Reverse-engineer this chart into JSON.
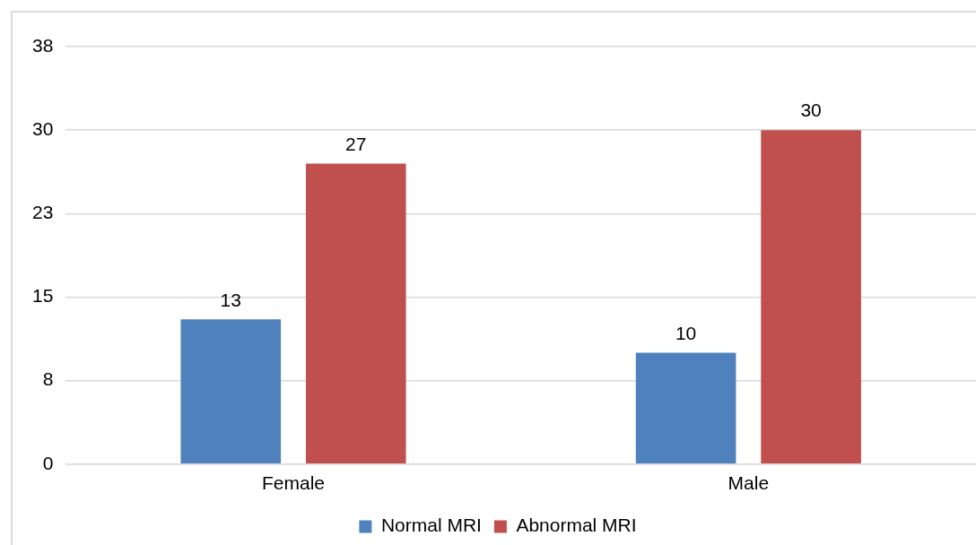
{
  "chart_data": {
    "type": "bar",
    "categories": [
      "Female",
      "Male"
    ],
    "series": [
      {
        "name": "Normal MRI",
        "color": "#4f81bd",
        "values": [
          13,
          10
        ]
      },
      {
        "name": "Abnormal MRI",
        "color": "#c0504d",
        "values": [
          27,
          30
        ]
      }
    ],
    "ylim": [
      0,
      37.5
    ],
    "yticks": [
      0,
      {
        "value": 7.5,
        "label": "8"
      },
      15,
      {
        "value": 22.5,
        "label": "23"
      },
      30,
      {
        "value": 37.5,
        "label": "38"
      }
    ],
    "grid": "y",
    "legend": "bottom",
    "data_labels": true
  }
}
